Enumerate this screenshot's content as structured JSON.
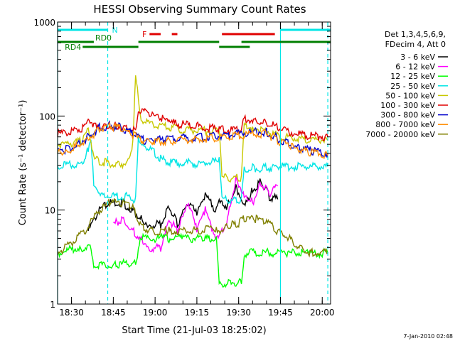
{
  "chart_data": {
    "type": "line",
    "title": "HESSI Observing Summary Count Rates",
    "xlabel": "Start Time (21-Jul-03 18:25:02)",
    "ylabel": "Count Rate (s⁻¹ detector⁻¹)",
    "y_scale": "log",
    "ylim": [
      1,
      1000
    ],
    "y_ticks": [
      1,
      10,
      100,
      1000
    ],
    "y_tick_labels": [
      "1",
      "10",
      "100",
      "1000"
    ],
    "xlim": [
      "18:25",
      "20:03"
    ],
    "x_ticks": [
      "18:30",
      "18:45",
      "19:00",
      "19:15",
      "19:30",
      "19:45",
      "20:00"
    ],
    "grid": false,
    "legend_position": "right",
    "legend_header": [
      "Det 1,3,4,5,6,9,",
      "FDecim 4, Att 0"
    ],
    "timestamp": "7-Jan-2010 02:48",
    "flags": [
      {
        "label": "N",
        "color": "#00e5e5",
        "segments": [
          [
            "18:25",
            "18:43"
          ],
          [
            "19:45",
            "20:03"
          ]
        ]
      },
      {
        "label": "RD0",
        "color": "#007f00",
        "segments": [
          [
            "18:25",
            "18:38"
          ],
          [
            "18:54",
            "19:23"
          ],
          [
            "19:31",
            "20:03"
          ]
        ]
      },
      {
        "label": "RD4",
        "color": "#007f00",
        "segments": [
          [
            "18:34",
            "18:54"
          ],
          [
            "19:23",
            "19:34"
          ]
        ]
      },
      {
        "label": "F",
        "color": "#e00000",
        "segments": [
          [
            "18:58",
            "19:02"
          ],
          [
            "19:06",
            "19:08"
          ],
          [
            "19:24",
            "19:43"
          ]
        ]
      }
    ],
    "vlines": [
      {
        "x": "18:25",
        "color": "#00e5e5",
        "style": "solid"
      },
      {
        "x": "18:43",
        "color": "#00e5e5",
        "style": "dashed"
      },
      {
        "x": "19:45",
        "color": "#00e5e5",
        "style": "solid"
      },
      {
        "x": "20:02",
        "color": "#00e5e5",
        "style": "dashed"
      }
    ],
    "series": [
      {
        "name": "3 - 6 keV",
        "color": "#000000",
        "x": [
          "18:36",
          "18:40",
          "18:44",
          "18:48",
          "18:52",
          "18:55",
          "18:58",
          "19:02",
          "19:05",
          "19:08",
          "19:12",
          "19:15",
          "19:18",
          "19:22",
          "19:23",
          "19:26",
          "19:29",
          "19:32",
          "19:35",
          "19:38",
          "19:41",
          "19:44"
        ],
        "y": [
          6,
          10,
          12,
          12,
          10,
          8,
          7,
          7,
          11,
          7,
          12,
          9,
          14,
          10,
          12,
          11,
          17,
          12,
          16,
          20,
          14,
          13
        ]
      },
      {
        "name": "6 - 12 keV",
        "color": "#ff00ff",
        "x": [
          "18:45",
          "18:48",
          "18:52",
          "18:55",
          "18:58",
          "19:02",
          "19:05",
          "19:08",
          "19:12",
          "19:15",
          "19:18",
          "19:22",
          "19:23",
          "19:26",
          "19:29",
          "19:32",
          "19:35",
          "19:38",
          "19:41",
          "19:44"
        ],
        "y": [
          7,
          8,
          6,
          5,
          4,
          4,
          8,
          6,
          12,
          6,
          10,
          5,
          5,
          8,
          22,
          15,
          12,
          20,
          15,
          18
        ]
      },
      {
        "name": "12 - 25 keV",
        "color": "#00ff00",
        "x": [
          "18:25",
          "18:33",
          "18:37",
          "18:38",
          "18:46",
          "18:53",
          "18:55",
          "19:02",
          "19:10",
          "19:18",
          "19:22",
          "19:23",
          "19:27",
          "19:31",
          "19:32",
          "19:37",
          "19:43",
          "19:47",
          "19:55",
          "20:02"
        ],
        "y": [
          3.5,
          4,
          4,
          2.6,
          2.6,
          2.8,
          5,
          5,
          5,
          5,
          5,
          1.6,
          1.7,
          1.7,
          3.5,
          3.5,
          3.5,
          3.5,
          3.5,
          3.5
        ]
      },
      {
        "name": "25 - 50 keV",
        "color": "#00e5e5",
        "x": [
          "18:25",
          "18:30",
          "18:34",
          "18:36",
          "18:37",
          "18:38",
          "18:40",
          "18:45",
          "18:50",
          "18:53",
          "18:54",
          "18:56",
          "19:00",
          "19:04",
          "19:10",
          "19:15",
          "19:20",
          "19:23",
          "19:24",
          "19:28",
          "19:31",
          "19:32",
          "19:36",
          "19:40",
          "19:44",
          "19:50",
          "19:55",
          "20:02"
        ],
        "y": [
          30,
          30,
          31,
          45,
          60,
          18,
          14,
          14,
          14,
          13,
          60,
          50,
          40,
          32,
          32,
          31,
          32,
          33,
          13,
          13,
          13,
          28,
          28,
          28,
          29,
          29,
          29,
          29
        ]
      },
      {
        "name": "50 - 100 keV",
        "color": "#c8c800",
        "x": [
          "18:25",
          "18:30",
          "18:34",
          "18:36",
          "18:38",
          "18:42",
          "18:46",
          "18:50",
          "18:52",
          "18:53",
          "18:55",
          "19:00",
          "19:05",
          "19:15",
          "19:23",
          "19:24",
          "19:28",
          "19:31",
          "19:32",
          "19:35",
          "19:40",
          "19:45",
          "19:50",
          "19:55",
          "20:02"
        ],
        "y": [
          50,
          52,
          55,
          70,
          35,
          32,
          30,
          32,
          50,
          300,
          90,
          80,
          75,
          70,
          68,
          22,
          22,
          22,
          78,
          75,
          70,
          60,
          58,
          56,
          55
        ]
      },
      {
        "name": "100 - 300 keV",
        "color": "#e00000",
        "x": [
          "18:25",
          "18:30",
          "18:34",
          "18:36",
          "18:38",
          "18:42",
          "18:46",
          "18:50",
          "18:53",
          "18:54",
          "18:58",
          "19:02",
          "19:05",
          "19:15",
          "19:23",
          "19:31",
          "19:32",
          "19:36",
          "19:40",
          "19:44",
          "19:50",
          "19:55",
          "20:02"
        ],
        "y": [
          65,
          68,
          75,
          85,
          80,
          80,
          78,
          75,
          72,
          120,
          105,
          95,
          85,
          78,
          72,
          70,
          95,
          90,
          85,
          75,
          65,
          62,
          60
        ]
      },
      {
        "name": "300 - 800 keV",
        "color": "#0000cc",
        "x": [
          "18:25",
          "18:28",
          "18:32",
          "18:36",
          "18:40",
          "18:44",
          "18:48",
          "18:52",
          "18:56",
          "19:00",
          "19:04",
          "19:10",
          "19:20",
          "19:30",
          "19:36",
          "19:40",
          "19:44",
          "19:48",
          "19:52",
          "19:56",
          "20:02"
        ],
        "y": [
          42,
          44,
          50,
          60,
          75,
          80,
          75,
          65,
          55,
          55,
          56,
          58,
          60,
          65,
          68,
          68,
          58,
          50,
          45,
          43,
          40
        ]
      },
      {
        "name": "800 - 7000 keV",
        "color": "#ff8c00",
        "x": [
          "18:25",
          "18:28",
          "18:32",
          "18:36",
          "18:40",
          "18:44",
          "18:48",
          "18:52",
          "18:56",
          "19:00",
          "19:04",
          "19:10",
          "19:20",
          "19:30",
          "19:36",
          "19:40",
          "19:44",
          "19:48",
          "19:52",
          "19:56",
          "20:02"
        ],
        "y": [
          40,
          42,
          48,
          58,
          72,
          78,
          73,
          63,
          53,
          53,
          54,
          56,
          58,
          62,
          65,
          65,
          55,
          48,
          43,
          41,
          38
        ]
      },
      {
        "name": "7000 - 20000 keV",
        "color": "#808000",
        "x": [
          "18:25",
          "18:30",
          "18:35",
          "18:40",
          "18:44",
          "18:48",
          "18:52",
          "18:54",
          "18:58",
          "19:05",
          "19:15",
          "19:22",
          "19:23",
          "19:26",
          "19:29",
          "19:32",
          "19:36",
          "19:40",
          "19:44",
          "19:48",
          "19:52",
          "19:56",
          "20:02"
        ],
        "y": [
          3.5,
          4.5,
          6,
          10,
          12,
          12,
          11,
          7,
          6,
          6,
          6,
          6.5,
          6,
          7,
          7,
          8,
          8,
          7.5,
          6,
          5,
          4,
          3.5,
          3.5
        ]
      }
    ]
  }
}
